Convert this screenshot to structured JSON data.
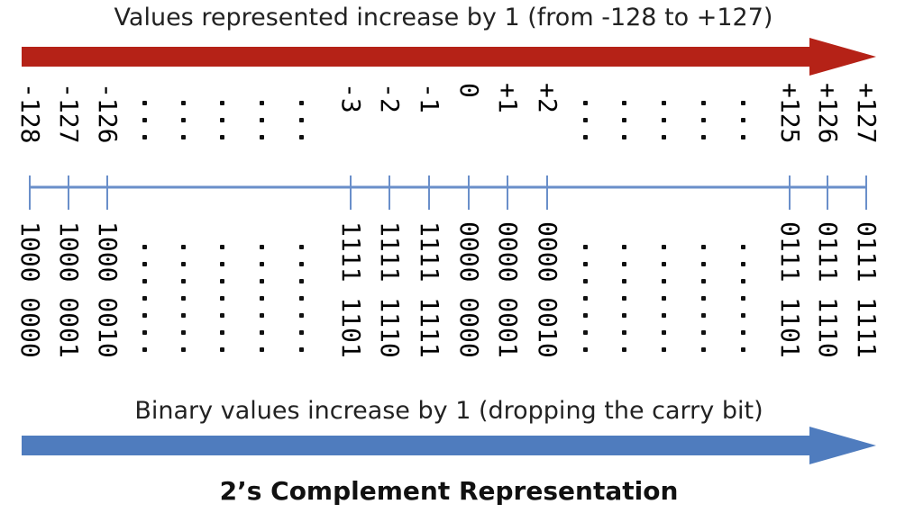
{
  "top_caption": "Values represented  increase by 1 (from -128 to +127)",
  "bottom_caption": "Binary values increase by 1 (dropping  the carry bit)",
  "title": "2’s Complement Representation",
  "colors": {
    "top_arrow": "#b52217",
    "bottom_arrow": "#4f7cbe",
    "number_line": "#6a8fca"
  },
  "ticks": [
    {
      "decimal": "-128",
      "binary": "1000 0000"
    },
    {
      "decimal": "-127",
      "binary": "1000 0001"
    },
    {
      "decimal": "-126",
      "binary": "1000 0010"
    },
    {
      "decimal": "-3",
      "binary": "1111 1101"
    },
    {
      "decimal": "-2",
      "binary": "1111 1110"
    },
    {
      "decimal": "-1",
      "binary": "1111 1111"
    },
    {
      "decimal": "0",
      "binary": "0000 0000"
    },
    {
      "decimal": "+1",
      "binary": "0000 0001"
    },
    {
      "decimal": "+2",
      "binary": "0000 0010"
    },
    {
      "decimal": "+125",
      "binary": "0111 1101"
    },
    {
      "decimal": "+126",
      "binary": "0111 1110"
    },
    {
      "decimal": "+127",
      "binary": "0111 1111"
    }
  ]
}
